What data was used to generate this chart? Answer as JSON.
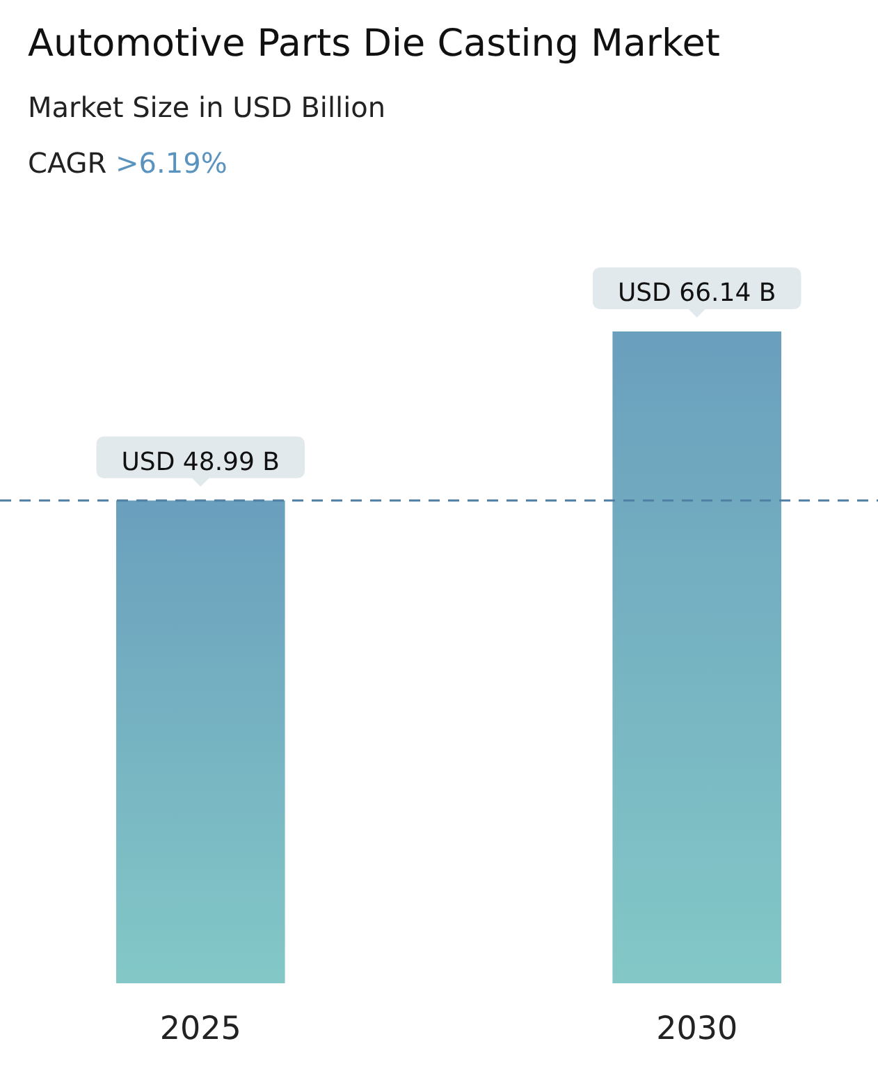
{
  "chart_data": {
    "type": "bar",
    "title": "Automotive Parts Die Casting Market",
    "subtitle": "Market Size in USD Billion",
    "annotations": [
      "CAGR >6.19%"
    ],
    "categories": [
      "2025",
      "2030"
    ],
    "values": [
      48.99,
      66.14
    ],
    "color": "#6a9fbd",
    "value_labels": [
      "USD 48.99 B",
      "USD 66.14 B"
    ],
    "ref_lines": [
      {
        "axis": "y",
        "value": 48.99,
        "color": "#4f7fa3",
        "line_style": "dashed"
      }
    ]
  }
}
